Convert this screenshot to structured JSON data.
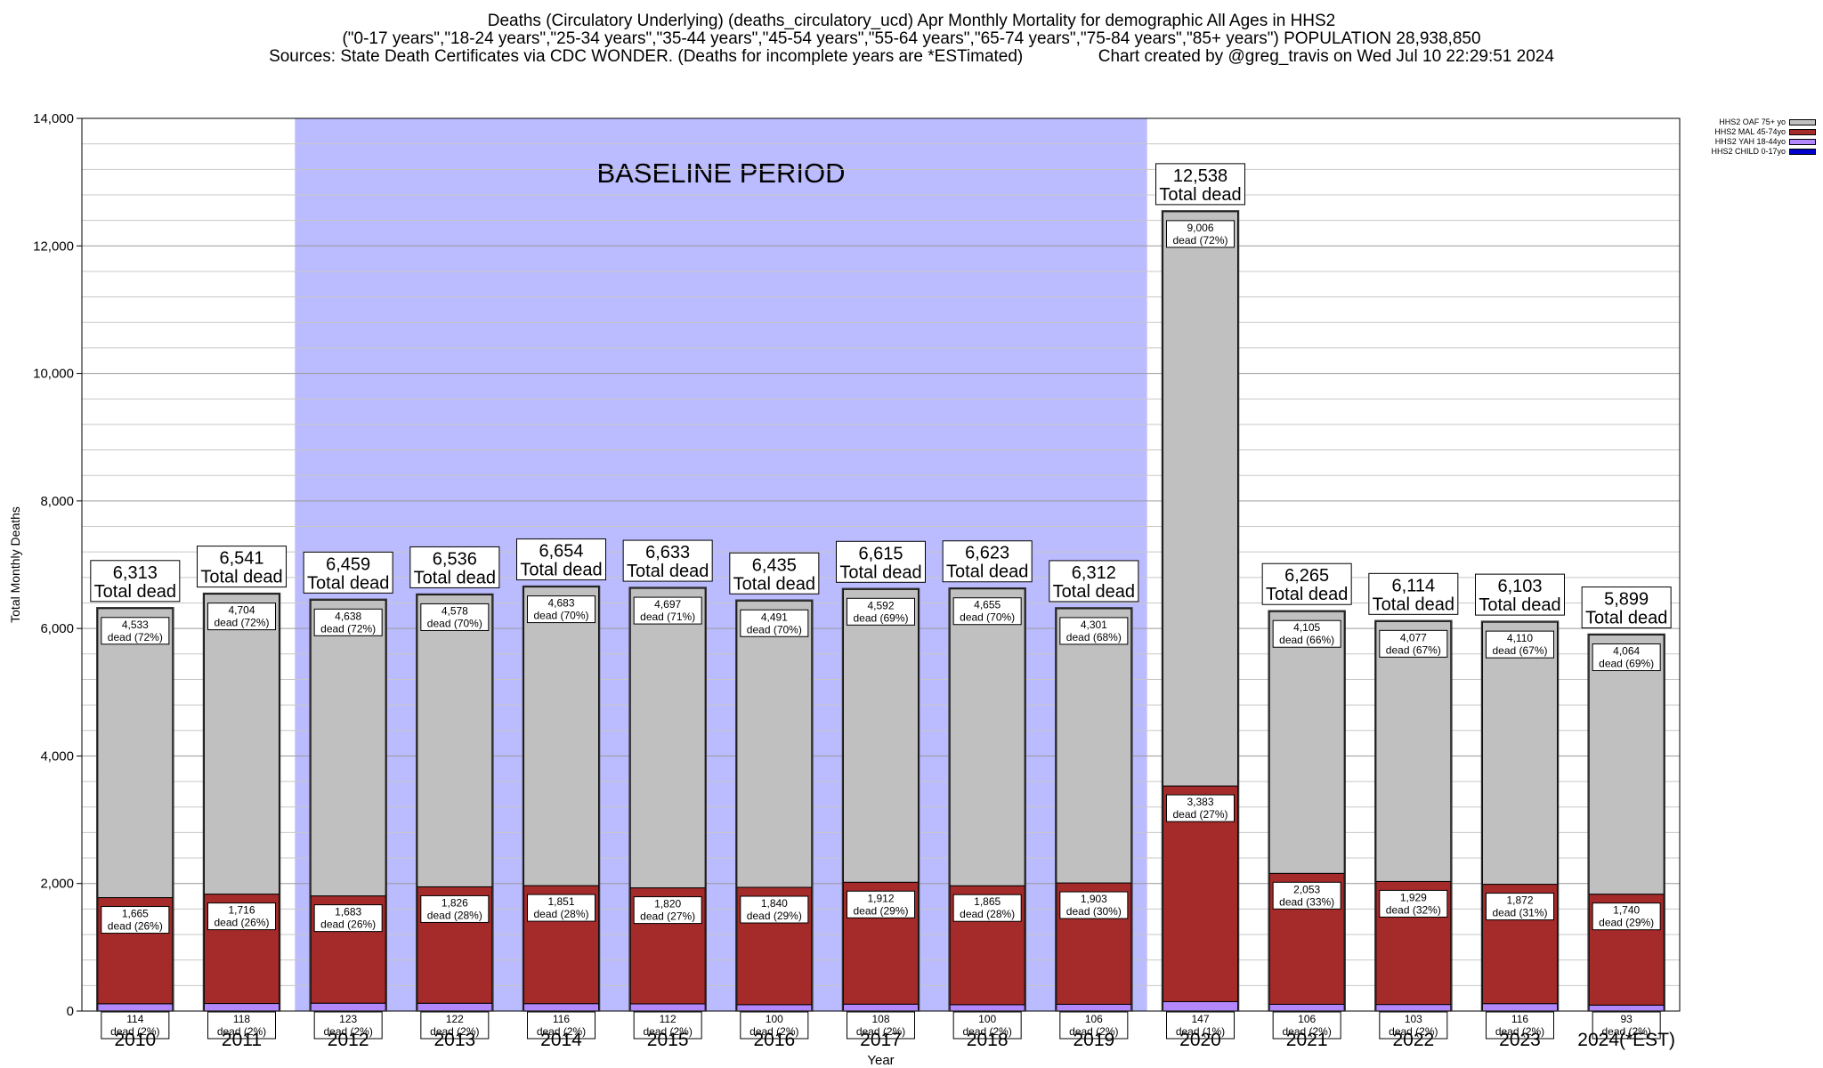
{
  "chart_data": {
    "type": "bar",
    "stacked": true,
    "title": "Deaths (Circulatory Underlying) (deaths_circulatory_ucd) Apr Monthly Mortality for demographic All Ages in HHS2",
    "subtitle_lines": [
      "(\"0-17 years\",\"18-24 years\",\"25-34 years\",\"35-44 years\",\"45-54 years\",\"55-64 years\",\"65-74 years\",\"75-84 years\",\"85+ years\") POPULATION 28,938,850",
      "Sources: State Death Certificates via CDC WONDER. (Deaths for incomplete years are *ESTimated)                Chart created by @greg_travis on Wed Jul 10 22:29:51 2024"
    ],
    "xlabel": "Year",
    "ylabel": "Total Monthly Deaths",
    "ylim": [
      0,
      14000
    ],
    "y_ticks": [
      0,
      2000,
      4000,
      6000,
      8000,
      10000,
      12000,
      14000
    ],
    "y_tick_labels": [
      "0",
      "2,000",
      "4,000",
      "6,000",
      "8,000",
      "10,000",
      "12,000",
      "14,000"
    ],
    "grid": true,
    "legend_position": "top-right",
    "baseline_label": "BASELINE PERIOD",
    "baseline_range": [
      "2012",
      "2019"
    ],
    "total_suffix": "Total dead",
    "segment_suffix": "dead",
    "categories": [
      "2010",
      "2011",
      "2012",
      "2013",
      "2014",
      "2015",
      "2016",
      "2017",
      "2018",
      "2019",
      "2020",
      "2021",
      "2022",
      "2023",
      "2024(*EST)"
    ],
    "totals": [
      6313,
      6541,
      6459,
      6536,
      6654,
      6633,
      6435,
      6615,
      6623,
      6312,
      12538,
      6265,
      6114,
      6103,
      5899
    ],
    "series": [
      {
        "name": "HHS2 CHILD 0-17yo",
        "color": "#0000cc",
        "values": [
          null,
          null,
          null,
          null,
          null,
          null,
          null,
          null,
          null,
          null,
          null,
          null,
          null,
          null,
          null
        ],
        "pct": [
          null,
          null,
          null,
          null,
          null,
          null,
          null,
          null,
          null,
          null,
          null,
          null,
          null,
          null,
          null
        ]
      },
      {
        "name": "HHS2 YAH 18-44yo",
        "color": "#b388ff",
        "values": [
          114,
          118,
          123,
          122,
          116,
          112,
          100,
          108,
          100,
          106,
          147,
          106,
          103,
          116,
          93
        ],
        "pct": [
          "2%",
          "2%",
          "2%",
          "2%",
          "2%",
          "2%",
          "2%",
          "2%",
          "2%",
          "2%",
          "1%",
          "2%",
          "2%",
          "2%",
          "2%"
        ]
      },
      {
        "name": "HHS2 MAL 45-74yo",
        "color": "#a52a2a",
        "values": [
          1665,
          1716,
          1683,
          1826,
          1851,
          1820,
          1840,
          1912,
          1865,
          1903,
          3383,
          2053,
          1929,
          1872,
          1740
        ],
        "pct": [
          "26%",
          "26%",
          "26%",
          "28%",
          "28%",
          "27%",
          "29%",
          "29%",
          "28%",
          "30%",
          "27%",
          "33%",
          "32%",
          "31%",
          "29%"
        ]
      },
      {
        "name": "HHS2 OAF 75+ yo",
        "color": "#c0c0c0",
        "values": [
          4533,
          4704,
          4638,
          4578,
          4683,
          4697,
          4491,
          4592,
          4655,
          4301,
          9006,
          4105,
          4077,
          4110,
          4064
        ],
        "pct": [
          "72%",
          "72%",
          "72%",
          "70%",
          "70%",
          "71%",
          "70%",
          "69%",
          "70%",
          "68%",
          "72%",
          "66%",
          "67%",
          "67%",
          "69%"
        ]
      }
    ],
    "legend_order": [
      "HHS2 OAF 75+ yo",
      "HHS2 MAL 45-74yo",
      "HHS2 YAH 18-44yo",
      "HHS2 CHILD 0-17yo"
    ],
    "baseline_color": "#bbbbff"
  }
}
